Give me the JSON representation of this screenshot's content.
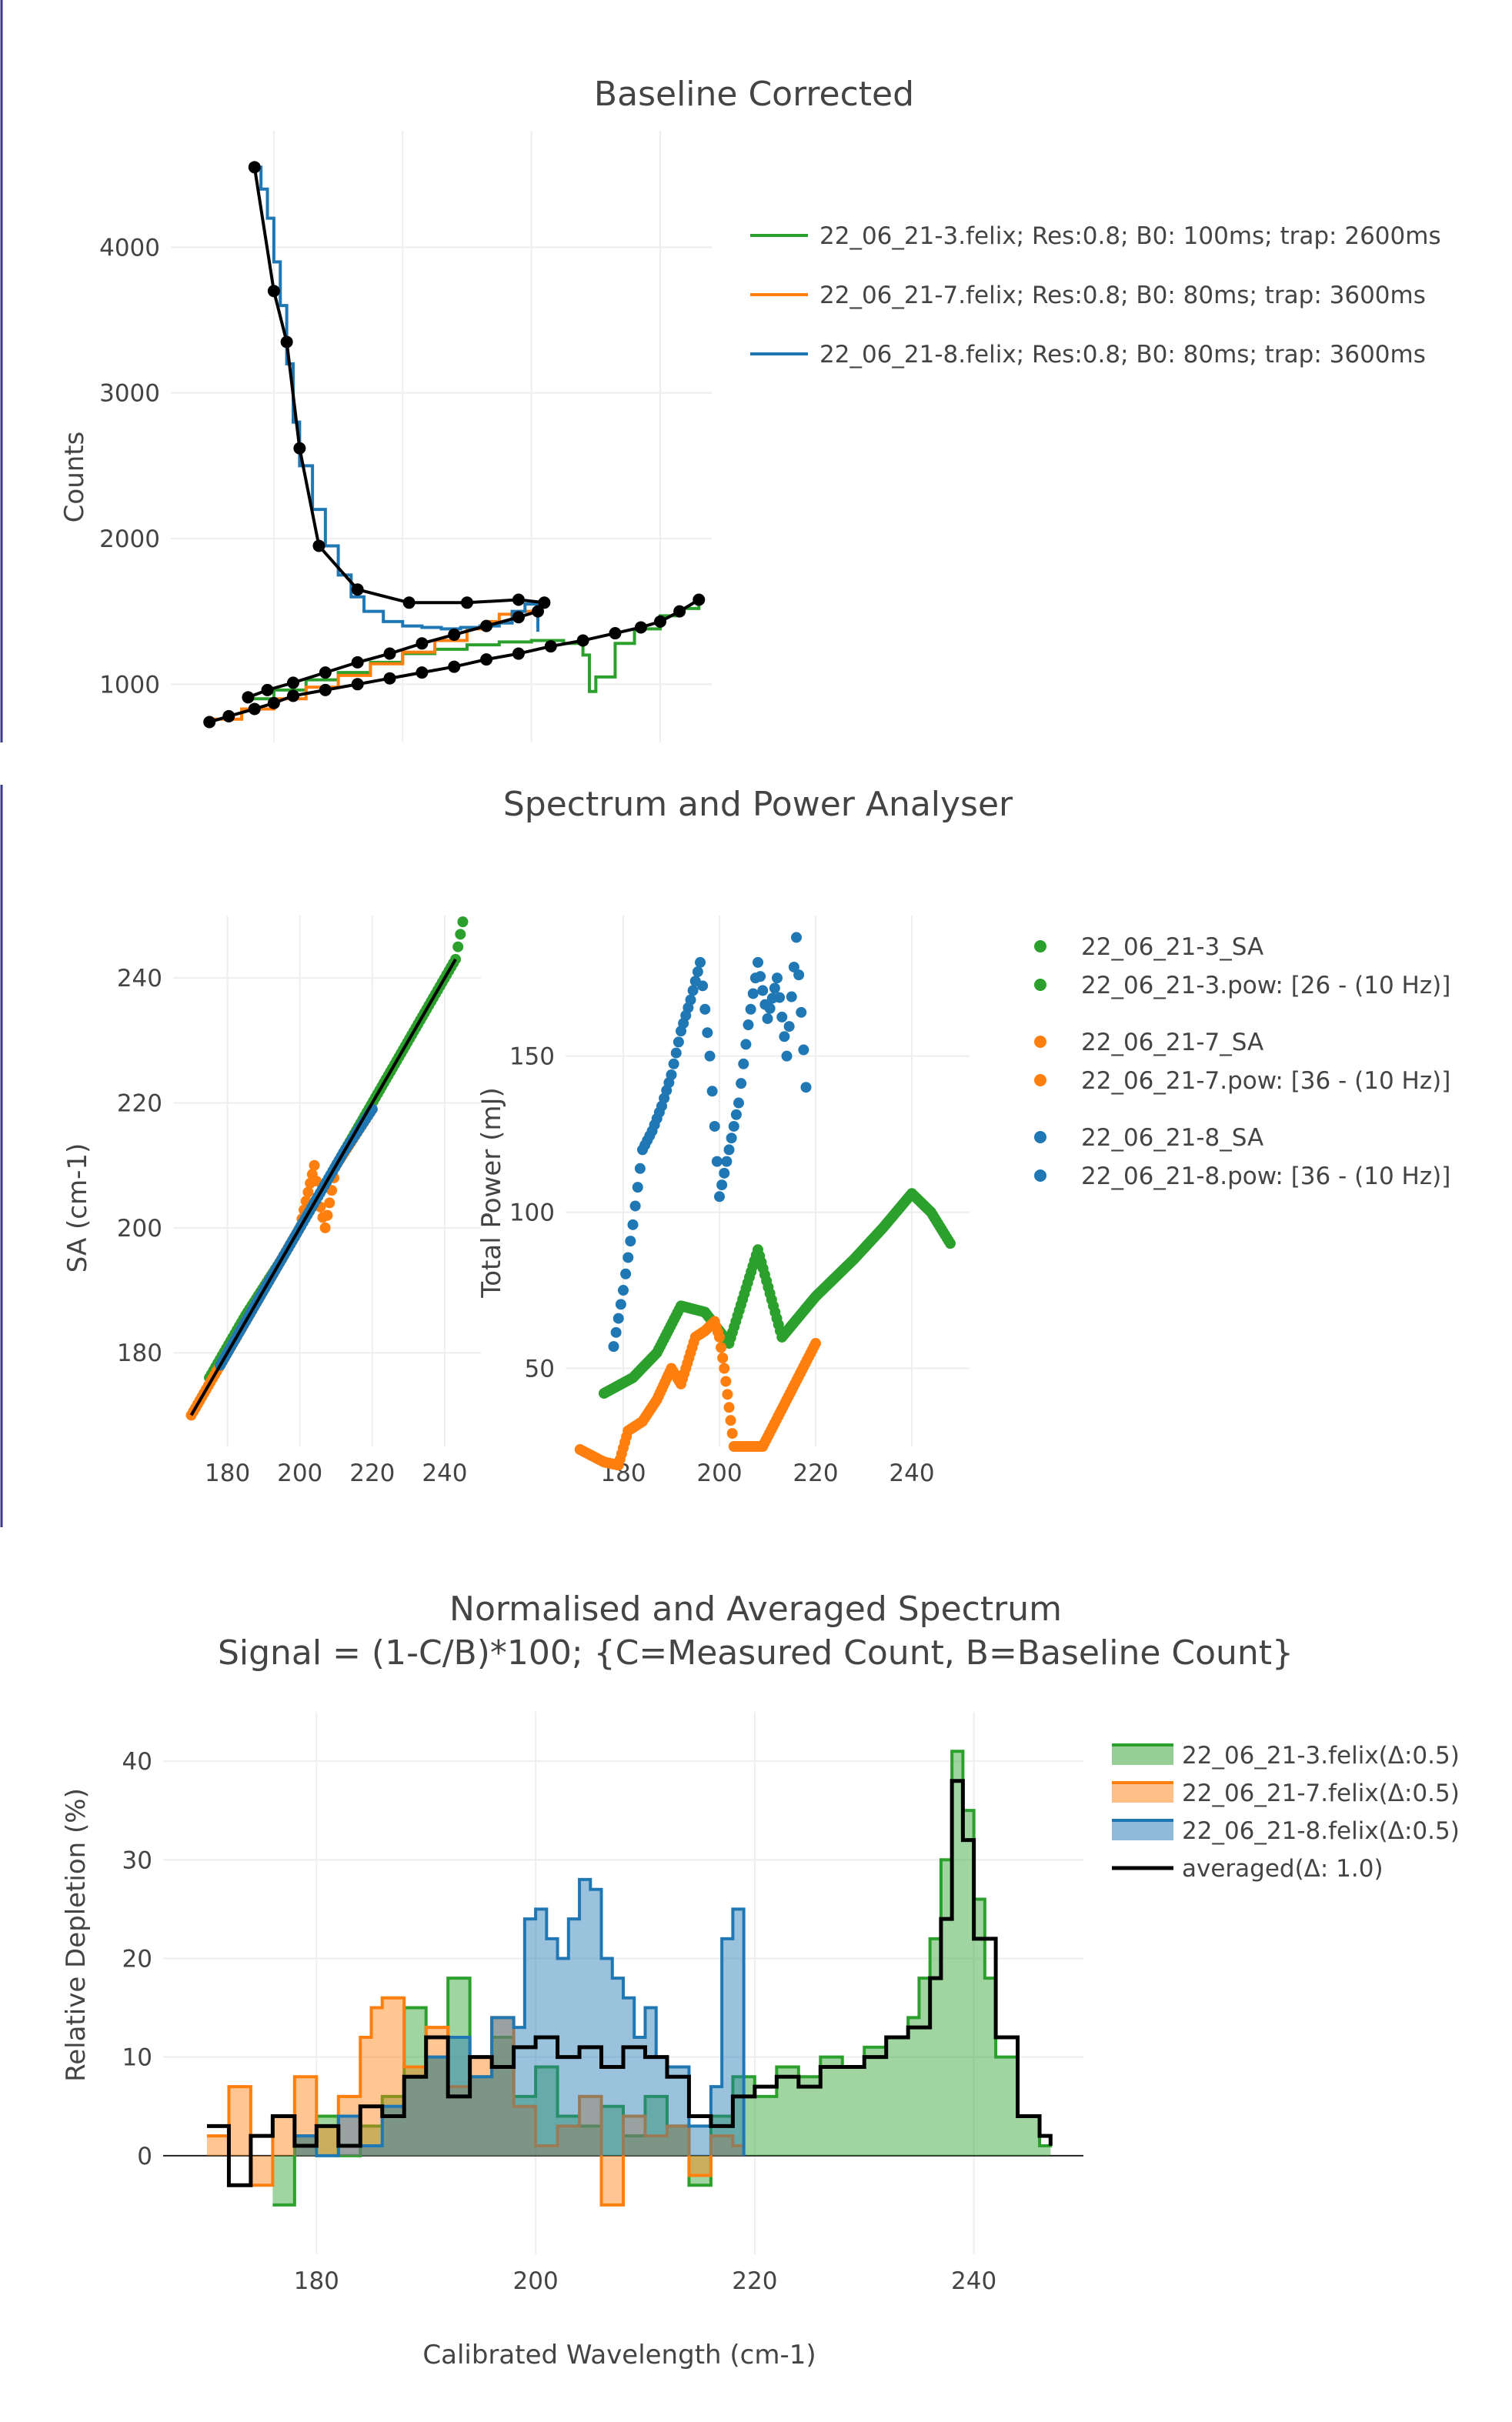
{
  "chart_data": [
    {
      "type": "line",
      "title": "Baseline Corrected",
      "xlabel": "",
      "ylabel": "Counts",
      "xlim": [
        164,
        248
      ],
      "ylim": [
        600,
        4800
      ],
      "y_ticks": [
        1000,
        2000,
        3000,
        4000
      ],
      "grid": true,
      "legend_position": "top-right",
      "series": [
        {
          "name": "22_06_21-3.felix; Res:0.8; B0: 100ms; trap: 2600ms",
          "color": "#2ca02c",
          "x": [
            176,
            180,
            185,
            190,
            195,
            200,
            205,
            210,
            215,
            220,
            225,
            228,
            229,
            230,
            233,
            236,
            240,
            243,
            246
          ],
          "y": [
            900,
            960,
            1030,
            1080,
            1150,
            1210,
            1240,
            1270,
            1290,
            1300,
            1280,
            1200,
            950,
            1050,
            1280,
            1380,
            1470,
            1520,
            1580
          ]
        },
        {
          "name": "22_06_21-7.felix; Res:0.8; B0: 80ms; trap: 3600ms",
          "color": "#ff7f0e",
          "x": [
            170,
            175,
            180,
            185,
            190,
            195,
            200,
            205,
            210,
            213,
            215,
            218,
            220
          ],
          "y": [
            760,
            830,
            900,
            980,
            1060,
            1140,
            1220,
            1300,
            1380,
            1430,
            1480,
            1500,
            1510
          ]
        },
        {
          "name": "22_06_21-8.felix; Res:0.8; B0: 80ms; trap: 3600ms",
          "color": "#1f77b4",
          "x": [
            177,
            178,
            179,
            180,
            181,
            182,
            183,
            184,
            186,
            188,
            190,
            192,
            194,
            197,
            200,
            203,
            206,
            209,
            212,
            215,
            217,
            219,
            221
          ],
          "y": [
            4550,
            4400,
            4200,
            3900,
            3600,
            3200,
            2800,
            2500,
            2200,
            1950,
            1750,
            1600,
            1500,
            1430,
            1400,
            1390,
            1380,
            1390,
            1400,
            1420,
            1500,
            1550,
            1360
          ]
        }
      ],
      "baseline_points": [
        {
          "x": [
            170,
            173,
            177,
            180,
            183,
            188,
            193,
            198,
            203,
            208,
            213,
            218,
            223,
            228,
            233,
            237,
            240,
            243,
            246
          ],
          "y": [
            740,
            780,
            830,
            870,
            920,
            960,
            1000,
            1040,
            1080,
            1120,
            1170,
            1210,
            1260,
            1300,
            1350,
            1390,
            1430,
            1500,
            1580
          ]
        },
        {
          "x": [
            176,
            179,
            183,
            188,
            193,
            198,
            203,
            208,
            213,
            218,
            221
          ],
          "y": [
            910,
            960,
            1010,
            1080,
            1150,
            1210,
            1280,
            1340,
            1400,
            1460,
            1500
          ]
        },
        {
          "x": [
            177,
            180,
            182,
            184,
            187,
            193,
            201,
            210,
            218,
            222
          ],
          "y": [
            4550,
            3700,
            3350,
            2620,
            1950,
            1650,
            1560,
            1560,
            1580,
            1560
          ]
        }
      ]
    },
    {
      "type": "scatter",
      "title": "Spectrum and Power Analyser",
      "panels": [
        {
          "ylabel": "SA (cm-1)",
          "xlim": [
            165,
            250
          ],
          "ylim": [
            165,
            250
          ],
          "x_ticks": [
            180,
            200,
            220,
            240
          ],
          "y_ticks": [
            180,
            200,
            220,
            240
          ],
          "series": [
            {
              "name": "22_06_21-3_SA",
              "color": "#2ca02c",
              "x": [
                175,
                185,
                195,
                205,
                215,
                225,
                235,
                243,
                245
              ],
              "y": [
                176,
                186,
                195,
                205,
                215,
                225,
                235,
                243,
                249
              ]
            },
            {
              "name": "22_06_21-7_SA",
              "color": "#ff7f0e",
              "x": [
                170,
                180,
                190,
                200,
                204,
                205,
                207,
                210,
                220
              ],
              "y": [
                170,
                180,
                190,
                200,
                210,
                205,
                200,
                210,
                219
              ]
            },
            {
              "name": "22_06_21-8_SA",
              "color": "#1f77b4",
              "x": [
                178,
                185,
                195,
                205,
                212,
                220
              ],
              "y": [
                178,
                185,
                195,
                205,
                212,
                219
              ]
            }
          ]
        },
        {
          "ylabel": "Total Power (mJ)",
          "xlim": [
            168,
            252
          ],
          "ylim": [
            25,
            195
          ],
          "x_ticks": [
            180,
            200,
            220,
            240
          ],
          "y_ticks": [
            50,
            100,
            150
          ],
          "series": [
            {
              "name": "22_06_21-3.pow: [26 - (10 Hz)]",
              "color": "#2ca02c",
              "x": [
                176,
                182,
                187,
                192,
                197,
                202,
                208,
                213,
                220,
                228,
                234,
                240,
                244,
                248
              ],
              "y": [
                42,
                47,
                55,
                70,
                68,
                58,
                88,
                60,
                73,
                85,
                95,
                106,
                100,
                90
              ]
            },
            {
              "name": "22_06_21-7.pow: [36 - (10 Hz)]",
              "color": "#ff7f0e",
              "x": [
                171,
                176,
                179,
                181,
                184,
                187,
                190,
                192,
                195,
                197,
                199,
                200,
                201,
                203,
                209,
                220
              ],
              "y": [
                24,
                20,
                19,
                30,
                33,
                40,
                50,
                45,
                60,
                62,
                65,
                60,
                50,
                25,
                25,
                58
              ]
            },
            {
              "name": "22_06_21-8.pow: [36 - (10 Hz)]",
              "color": "#1f77b4",
              "x": [
                178,
                180,
                182,
                184,
                186,
                188,
                190,
                192,
                194,
                196,
                198,
                200,
                202,
                204,
                206,
                208,
                210,
                212,
                214,
                216,
                218
              ],
              "y": [
                57,
                75,
                96,
                120,
                126,
                134,
                144,
                158,
                168,
                180,
                150,
                105,
                120,
                135,
                160,
                180,
                162,
                175,
                150,
                188,
                140
              ]
            }
          ]
        }
      ],
      "legend_position": "top-right"
    },
    {
      "type": "area",
      "title": "Normalised and Averaged Spectrum",
      "subtitle": "Signal = (1-C/B)*100; {C=Measured Count, B=Baseline Count}",
      "xlabel": "Calibrated Wavelength (cm-1)",
      "ylabel": "Relative Depletion (%)",
      "xlim": [
        166,
        250
      ],
      "ylim": [
        -10,
        45
      ],
      "x_ticks": [
        180,
        200,
        220,
        240
      ],
      "y_ticks": [
        0,
        10,
        20,
        30,
        40
      ],
      "grid": true,
      "legend_position": "top-right",
      "series": [
        {
          "name": "22_06_21-3.felix(Δ:0.5)",
          "color": "#2ca02c",
          "x": [
            176,
            178,
            180,
            182,
            184,
            186,
            188,
            190,
            192,
            194,
            196,
            198,
            200,
            202,
            204,
            206,
            208,
            210,
            212,
            214,
            216,
            218,
            220,
            222,
            224,
            226,
            228,
            230,
            232,
            234,
            235,
            236,
            237,
            238,
            239,
            240,
            241,
            242,
            244,
            246,
            247
          ],
          "y": [
            -5,
            2,
            4,
            0,
            3,
            6,
            15,
            10,
            18,
            8,
            12,
            6,
            9,
            4,
            3,
            5,
            2,
            6,
            3,
            -3,
            4,
            8,
            6,
            9,
            8,
            10,
            9,
            11,
            12,
            14,
            18,
            22,
            30,
            41,
            35,
            26,
            18,
            10,
            4,
            1,
            2
          ]
        },
        {
          "name": "22_06_21-7.felix(Δ:0.5)",
          "color": "#ff7f0e",
          "x": [
            170,
            172,
            174,
            176,
            178,
            180,
            182,
            184,
            185,
            186,
            188,
            190,
            192,
            194,
            196,
            198,
            200,
            202,
            204,
            206,
            208,
            210,
            212,
            214,
            216,
            218,
            219
          ],
          "y": [
            2,
            7,
            -3,
            4,
            8,
            3,
            6,
            12,
            15,
            16,
            9,
            13,
            7,
            10,
            14,
            5,
            1,
            3,
            6,
            -5,
            4,
            2,
            3,
            -2,
            2,
            1,
            2
          ]
        },
        {
          "name": "22_06_21-8.felix(Δ:0.5)",
          "color": "#1f77b4",
          "x": [
            178,
            180,
            182,
            184,
            186,
            188,
            190,
            192,
            194,
            196,
            198,
            199,
            200,
            201,
            202,
            203,
            204,
            205,
            206,
            207,
            208,
            209,
            210,
            211,
            212,
            214,
            216,
            217,
            218,
            219
          ],
          "y": [
            2,
            0,
            4,
            1,
            5,
            8,
            10,
            12,
            8,
            14,
            13,
            24,
            25,
            22,
            20,
            24,
            28,
            27,
            20,
            18,
            16,
            12,
            15,
            10,
            9,
            3,
            7,
            22,
            25,
            0
          ]
        },
        {
          "name": "averaged(Δ: 1.0)",
          "color": "#000000",
          "x": [
            170,
            172,
            174,
            176,
            178,
            180,
            182,
            184,
            186,
            188,
            190,
            192,
            194,
            196,
            198,
            200,
            202,
            204,
            206,
            208,
            210,
            212,
            214,
            216,
            218,
            220,
            222,
            224,
            226,
            228,
            230,
            232,
            234,
            236,
            237,
            238,
            239,
            240,
            242,
            244,
            246,
            247
          ],
          "y": [
            3,
            -3,
            2,
            4,
            1,
            3,
            1,
            5,
            4,
            8,
            12,
            6,
            10,
            9,
            11,
            12,
            10,
            11,
            9,
            11,
            10,
            8,
            4,
            3,
            6,
            7,
            8,
            7,
            9,
            9,
            10,
            12,
            13,
            18,
            24,
            38,
            32,
            22,
            12,
            4,
            2,
            1
          ]
        }
      ]
    }
  ]
}
